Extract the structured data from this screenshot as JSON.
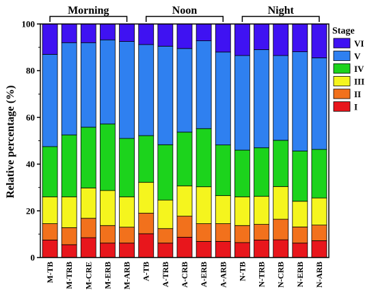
{
  "chart_data": {
    "type": "bar",
    "stacked": true,
    "ylabel": "Relative percentage (%)",
    "xlabel": "",
    "ylim": [
      0,
      100
    ],
    "yticks": [
      0,
      20,
      40,
      60,
      80,
      100
    ],
    "grid": false,
    "legend_title": "Stage",
    "legend_position": "right",
    "categories": [
      "M-TB",
      "M-TRB",
      "M-CRE",
      "M-ERB",
      "M-ARB",
      "A-TB",
      "A-TRB",
      "A-CRB",
      "A-ERB",
      "A-ARB",
      "N-TB",
      "N-TRB",
      "N-CRB",
      "N-ERB",
      "N-ARB"
    ],
    "groups": [
      {
        "label": "Morning",
        "start": 0,
        "end": 4
      },
      {
        "label": "Noon",
        "start": 5,
        "end": 9
      },
      {
        "label": "Night",
        "start": 10,
        "end": 14
      }
    ],
    "series": [
      {
        "name": "I",
        "color": "#e8161c",
        "values": [
          7.5,
          5.5,
          8.5,
          6.2,
          6.2,
          10.2,
          6.2,
          8.7,
          6.9,
          6.9,
          6.4,
          7.5,
          7.6,
          6.2,
          7.2
        ]
      },
      {
        "name": "II",
        "color": "#f2711c",
        "values": [
          7.0,
          7.3,
          8.3,
          7.5,
          6.8,
          8.8,
          6.2,
          9.0,
          7.6,
          7.6,
          7.3,
          6.7,
          8.8,
          6.9,
          6.7
        ]
      },
      {
        "name": "III",
        "color": "#f5f51e",
        "values": [
          11.5,
          13.2,
          13.0,
          15.0,
          13.0,
          13.2,
          12.2,
          13.0,
          15.8,
          12.0,
          12.3,
          12.0,
          14.0,
          11.0,
          11.6
        ]
      },
      {
        "name": "IV",
        "color": "#1cd31c",
        "values": [
          21.5,
          26.5,
          26.0,
          28.5,
          25.0,
          20.0,
          23.7,
          23.0,
          24.9,
          21.7,
          20.0,
          20.8,
          19.8,
          21.5,
          20.8
        ]
      },
      {
        "name": "V",
        "color": "#2f80f0",
        "values": [
          39.5,
          39.5,
          36.2,
          36.0,
          41.5,
          39.0,
          42.2,
          35.8,
          37.6,
          39.8,
          40.5,
          42.0,
          36.3,
          42.5,
          39.2
        ]
      },
      {
        "name": "VI",
        "color": "#3f12f2",
        "values": [
          13.0,
          8.0,
          8.0,
          6.8,
          7.5,
          8.8,
          9.5,
          10.5,
          7.2,
          12.0,
          13.5,
          11.0,
          13.5,
          11.9,
          14.5
        ]
      }
    ]
  }
}
